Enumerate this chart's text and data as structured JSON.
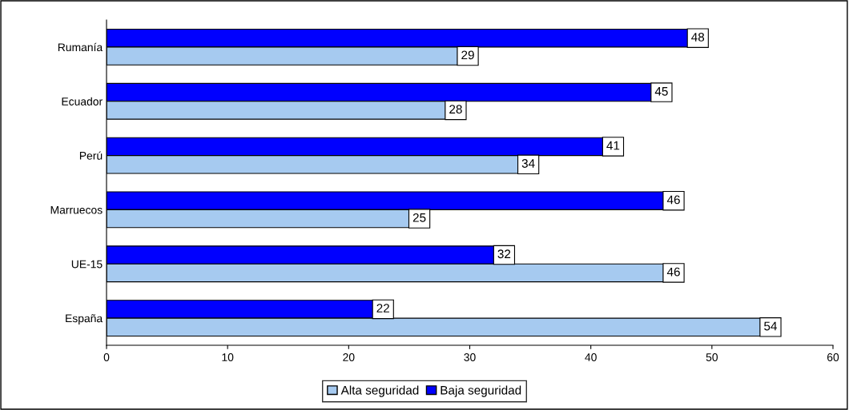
{
  "chart_data": {
    "type": "bar",
    "orientation": "horizontal",
    "categories": [
      "Rumanía",
      "Ecuador",
      "Perú",
      "Marruecos",
      "UE-15",
      "España"
    ],
    "series": [
      {
        "name": "Baja seguridad",
        "color": "#0000ff",
        "values": [
          48,
          45,
          41,
          46,
          32,
          22
        ]
      },
      {
        "name": "Alta seguridad",
        "color": "#a6caf0",
        "values": [
          29,
          28,
          34,
          25,
          46,
          54
        ]
      }
    ],
    "xlim": [
      0,
      60
    ],
    "xticks": [
      0,
      10,
      20,
      30,
      40,
      50,
      60
    ],
    "grid": false,
    "legend": "bottom",
    "data_labels": true
  }
}
